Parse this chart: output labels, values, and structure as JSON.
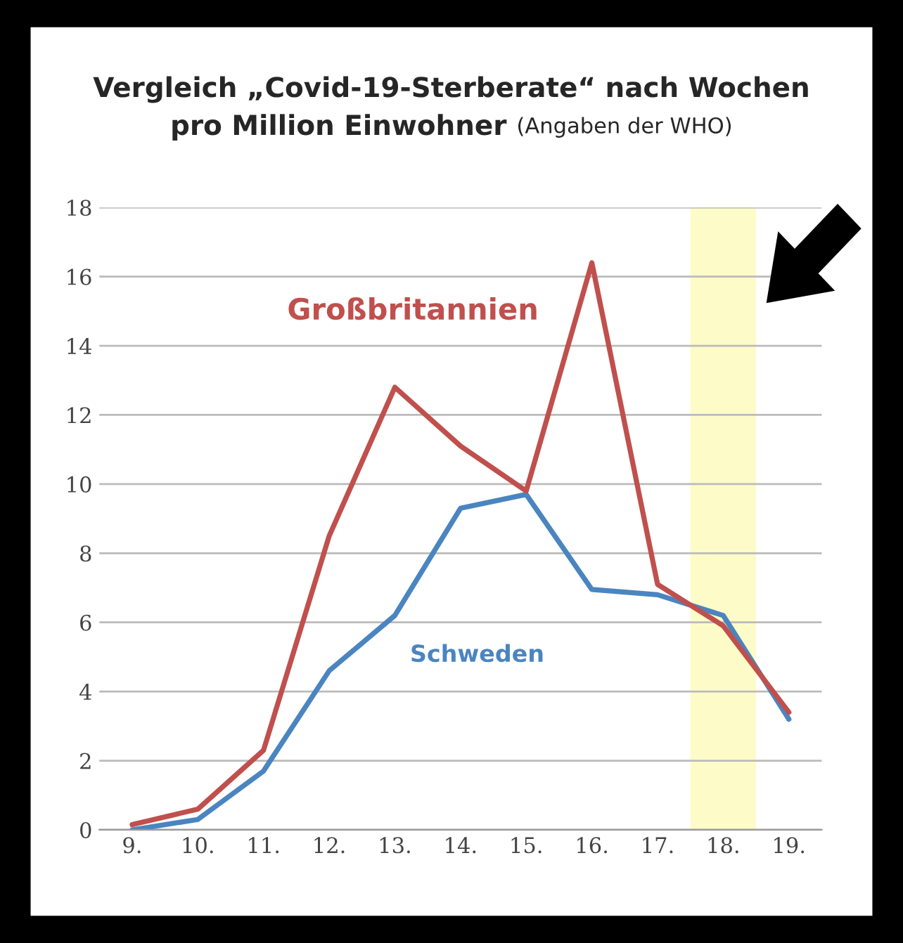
{
  "chart_data": {
    "type": "line",
    "title": "Vergleich „Covid-19-Sterberate“ nach Wochen\npro Million Einwohner",
    "subtitle": "(Angaben der WHO)",
    "x": [
      9,
      10,
      11,
      12,
      13,
      14,
      15,
      16,
      17,
      18,
      19
    ],
    "xlim": [
      8.5,
      19.5
    ],
    "xticks": [
      {
        "value": 9,
        "label": "9."
      },
      {
        "value": 10,
        "label": "10."
      },
      {
        "value": 11,
        "label": "11."
      },
      {
        "value": 12,
        "label": "12."
      },
      {
        "value": 13,
        "label": "13."
      },
      {
        "value": 14,
        "label": "14."
      },
      {
        "value": 15,
        "label": "15."
      },
      {
        "value": 16,
        "label": "16."
      },
      {
        "value": 17,
        "label": "17."
      },
      {
        "value": 18,
        "label": "18."
      },
      {
        "value": 19,
        "label": "19."
      }
    ],
    "ylim": [
      0,
      18
    ],
    "yticks": [
      0,
      2,
      4,
      6,
      8,
      10,
      12,
      14,
      16,
      18
    ],
    "grid": "y",
    "legend": false,
    "marker": "none",
    "line_style": "solid",
    "series": [
      {
        "name": "Großbritannien",
        "color": "#c0504d",
        "values": [
          0.15,
          0.6,
          2.3,
          8.5,
          12.8,
          11.1,
          9.8,
          16.4,
          7.1,
          5.9,
          3.4
        ]
      },
      {
        "name": "Schweden",
        "color": "#4a85c0",
        "values": [
          0.0,
          0.3,
          1.7,
          4.6,
          6.2,
          9.3,
          9.7,
          6.95,
          6.8,
          6.2,
          3.2
        ]
      }
    ],
    "bands": [
      {
        "axis": "x",
        "from": 17.5,
        "to": 18.5,
        "color": "#fdfbc8"
      }
    ]
  }
}
